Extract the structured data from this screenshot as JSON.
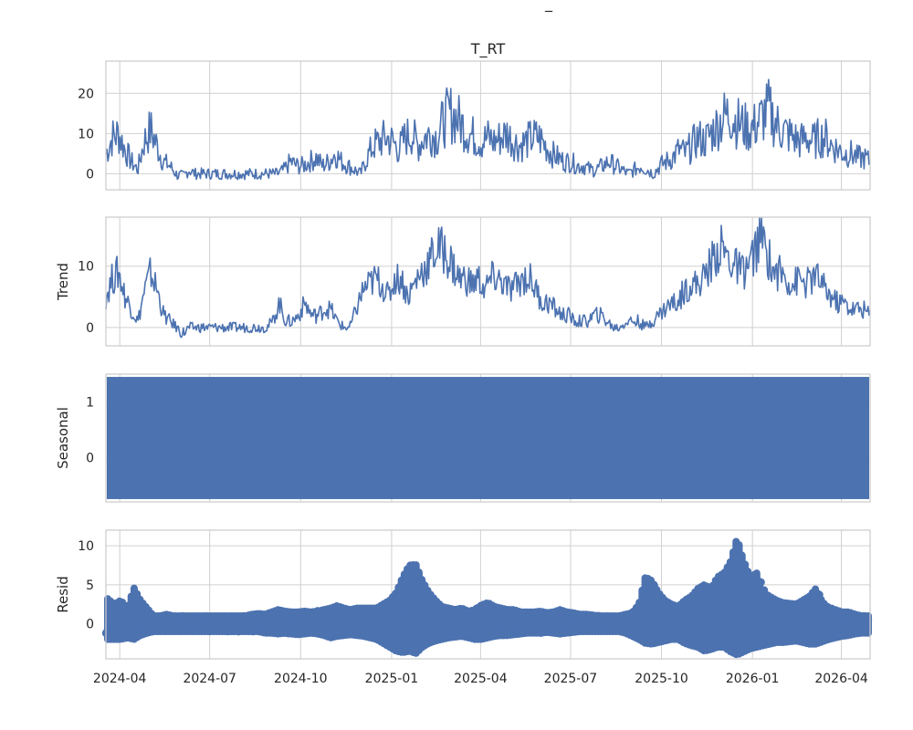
{
  "figure": {
    "suptitle": "_"
  },
  "chart_data": [
    {
      "type": "line",
      "title": "T_RT",
      "ylabel": "",
      "ylim": [
        -4,
        28
      ],
      "yticks": [
        "0",
        "10",
        "20"
      ],
      "series": [
        {
          "values": [
            5,
            9,
            10,
            6,
            3,
            1,
            8,
            11,
            7,
            3,
            2,
            0,
            -1,
            1,
            0,
            0,
            0,
            0,
            0,
            0,
            0,
            0,
            0,
            0,
            0,
            0,
            0,
            0,
            1,
            3,
            2,
            2,
            3,
            4,
            2,
            3,
            5,
            3,
            2,
            1,
            0,
            4,
            7,
            8,
            9,
            8,
            6,
            9,
            10,
            7,
            9,
            10,
            9,
            13,
            15,
            14,
            12,
            10,
            9,
            8,
            9,
            8,
            9,
            10,
            8,
            7,
            8,
            9,
            9,
            7,
            5,
            4,
            3,
            3,
            2,
            2,
            1,
            1,
            2,
            3,
            2,
            1,
            0,
            1,
            2,
            1,
            0,
            2,
            3,
            4,
            6,
            5,
            7,
            9,
            8,
            10,
            12,
            14,
            15,
            13,
            12,
            11,
            12,
            14,
            16,
            13,
            11,
            10,
            9,
            8,
            9,
            8,
            9,
            9,
            7,
            6,
            5,
            5,
            4,
            4,
            3
          ]
        }
      ]
    },
    {
      "type": "line",
      "title": "",
      "ylabel": "Trend",
      "ylim": [
        -3,
        18
      ],
      "yticks": [
        "0",
        "10"
      ],
      "series": [
        {
          "values": [
            5,
            8,
            9,
            5,
            3,
            1,
            6,
            9,
            6,
            2,
            1,
            0,
            -1,
            0,
            0,
            0,
            0,
            0,
            0,
            0,
            0,
            0,
            0,
            0,
            0,
            0,
            1,
            4,
            1,
            1,
            2,
            4,
            2,
            2,
            3,
            3,
            1,
            0,
            0,
            3,
            6,
            7,
            8,
            7,
            5,
            8,
            8,
            5,
            7,
            9,
            10,
            12,
            13,
            12,
            10,
            8,
            8,
            7,
            8,
            6,
            8,
            8,
            7,
            6,
            7,
            8,
            8,
            6,
            4,
            4,
            3,
            2,
            2,
            1,
            1,
            1,
            2,
            2,
            1,
            0,
            0,
            1,
            1,
            1,
            0,
            1,
            2,
            3,
            4,
            4,
            6,
            7,
            7,
            8,
            10,
            12,
            13,
            11,
            10,
            9,
            10,
            12,
            15,
            12,
            9,
            9,
            8,
            7,
            8,
            7,
            8,
            8,
            6,
            5,
            4,
            4,
            3,
            3,
            3,
            2
          ]
        }
      ]
    },
    {
      "type": "area",
      "title": "",
      "ylabel": "Seasonal",
      "ylim": [
        -0.8,
        1.5
      ],
      "yticks": [
        "0",
        "1"
      ],
      "band": [
        -0.75,
        1.45
      ]
    },
    {
      "type": "scatter",
      "title": "",
      "ylabel": "Resid",
      "ylim": [
        -4.5,
        12
      ],
      "yticks": [
        "0",
        "5",
        "10"
      ],
      "series": [
        {
          "upper": [
            3.2,
            2.5,
            3,
            2,
            4.6,
            3,
            2,
            1,
            1,
            1.2,
            1,
            1,
            1,
            1,
            1,
            1,
            1,
            1,
            1,
            1,
            1,
            1,
            1.2,
            1.3,
            1.2,
            1.5,
            1.8,
            1.6,
            1.5,
            1.5,
            1.6,
            1.5,
            1.6,
            1.8,
            2,
            2.3,
            2,
            1.8,
            2,
            2,
            2,
            2,
            2.5,
            3,
            4,
            6,
            7.5,
            7.6,
            5.5,
            4,
            3,
            2.2,
            2,
            1.8,
            2,
            1.6,
            1.8,
            2.4,
            2.7,
            2.2,
            2,
            1.8,
            1.8,
            1.5,
            1.5,
            1.5,
            1.6,
            1.4,
            1.5,
            1.8,
            1.5,
            1.4,
            1.2,
            1.2,
            1.1,
            1,
            1,
            1,
            1,
            1.2,
            1.4,
            2.5,
            6,
            5.5,
            4,
            3,
            2.5,
            2.2,
            3,
            3.5,
            4.5,
            5,
            4.5,
            6,
            6.5,
            8,
            11,
            8,
            6,
            6.5,
            4,
            3.5,
            3,
            2.7,
            2.6,
            2.5,
            3,
            3.5,
            4.5,
            2.8,
            2,
            1.8,
            1.5,
            1.5,
            1.2,
            1,
            1
          ],
          "lower": [
            -2,
            -2,
            -2,
            -1.8,
            -2,
            -1.5,
            -1.2,
            -1,
            -1,
            -1,
            -1,
            -1,
            -1,
            -1,
            -1,
            -1,
            -1,
            -1,
            -1,
            -1,
            -1,
            -1,
            -1,
            -1,
            -1.2,
            -1.2,
            -1.3,
            -1.2,
            -1.3,
            -1.4,
            -1.3,
            -1.2,
            -1.3,
            -1.5,
            -1.8,
            -1.6,
            -1.5,
            -1.4,
            -1.5,
            -1.6,
            -1.8,
            -2,
            -2.5,
            -3,
            -3.5,
            -3.7,
            -3.5,
            -3.8,
            -3,
            -2.5,
            -2.2,
            -2,
            -1.8,
            -1.7,
            -1.6,
            -1.8,
            -2,
            -2,
            -1.8,
            -1.6,
            -1.5,
            -1.5,
            -1.4,
            -1.3,
            -1.2,
            -1.2,
            -1.2,
            -1.1,
            -1.2,
            -1.3,
            -1.2,
            -1.1,
            -1,
            -1,
            -1,
            -1,
            -1,
            -1,
            -1,
            -1.2,
            -1.6,
            -2,
            -2.5,
            -2.6,
            -2.4,
            -2.2,
            -2,
            -2,
            -2.5,
            -2.8,
            -3,
            -3.5,
            -3.3,
            -3,
            -3,
            -3.6,
            -4,
            -3.6,
            -3.2,
            -3,
            -2.8,
            -2.6,
            -2.4,
            -2.4,
            -2.3,
            -2.2,
            -2.4,
            -2.6,
            -2.6,
            -2.3,
            -2,
            -1.8,
            -1.6,
            -1.5,
            -1.3,
            -1.2,
            -1.2
          ]
        }
      ]
    }
  ],
  "x_axis": {
    "ticks": [
      "2024-04",
      "2024-07",
      "2024-10",
      "2025-01",
      "2025-04",
      "2025-07",
      "2025-10",
      "2026-01",
      "2026-04"
    ],
    "xlim": [
      "2024-03-18",
      "2026-04-30"
    ]
  },
  "colors": {
    "series": "#4c72b0",
    "grid": "#d0d0d0",
    "frame": "#cccccc",
    "text": "#262626"
  }
}
